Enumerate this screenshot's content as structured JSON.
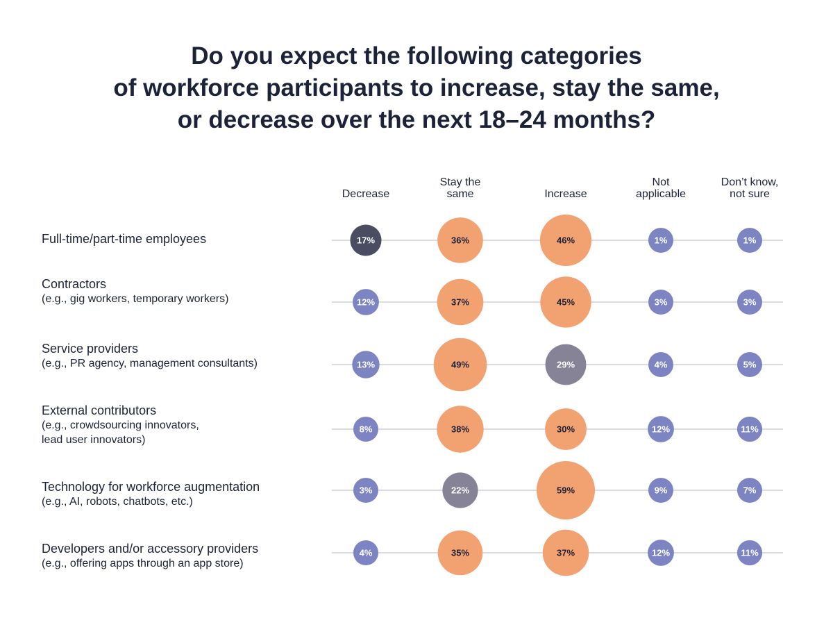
{
  "title_lines": [
    "Do you expect the following categories",
    "of workforce participants to increase, stay the same,",
    "or decrease over the next 18–24 months?"
  ],
  "colors": {
    "orange": "#f2a171",
    "periwinkle": "#7d84c2",
    "gray": "#868396",
    "dark": "#4a4d62",
    "line": "#d9dae2",
    "text": "#1c2238"
  },
  "chart_data": {
    "type": "bubble-matrix",
    "columns": [
      [
        "Decrease"
      ],
      [
        "Stay  the",
        "same"
      ],
      [
        "Increase"
      ],
      [
        "Not",
        "applicable"
      ],
      [
        "Don’t know,",
        "not sure"
      ]
    ],
    "rows": [
      {
        "title": "Full-time/part-time employees",
        "sub": []
      },
      {
        "title": "Contractors",
        "sub": [
          "(e.g., gig workers, temporary workers)"
        ]
      },
      {
        "title": "Service providers",
        "sub": [
          "(e.g., PR agency, management consultants)"
        ]
      },
      {
        "title": "External contributors",
        "sub": [
          "(e.g., crowdsourcing innovators,",
          "lead user innovators)"
        ]
      },
      {
        "title": "Technology for workforce augmentation",
        "sub": [
          "(e.g., AI, robots, chatbots, etc.)"
        ]
      },
      {
        "title": "Developers and/or accessory providers",
        "sub": [
          "(e.g., offering apps through an app store)"
        ]
      }
    ],
    "values": [
      [
        17,
        36,
        46,
        1,
        1
      ],
      [
        12,
        37,
        45,
        3,
        3
      ],
      [
        13,
        49,
        29,
        4,
        5
      ],
      [
        8,
        38,
        30,
        12,
        11
      ],
      [
        3,
        22,
        59,
        9,
        7
      ],
      [
        4,
        35,
        37,
        12,
        11
      ]
    ],
    "bubble_colors": [
      [
        "dark",
        "orange",
        "orange",
        "periwinkle",
        "periwinkle"
      ],
      [
        "periwinkle",
        "orange",
        "orange",
        "periwinkle",
        "periwinkle"
      ],
      [
        "periwinkle",
        "orange",
        "gray",
        "periwinkle",
        "periwinkle"
      ],
      [
        "periwinkle",
        "orange",
        "orange",
        "periwinkle",
        "periwinkle"
      ],
      [
        "periwinkle",
        "gray",
        "orange",
        "periwinkle",
        "periwinkle"
      ],
      [
        "periwinkle",
        "orange",
        "orange",
        "periwinkle",
        "periwinkle"
      ]
    ],
    "value_suffix": "%"
  }
}
